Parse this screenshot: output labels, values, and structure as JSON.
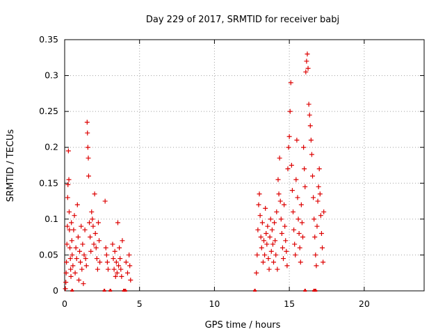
{
  "chart_data": {
    "type": "scatter",
    "title": "Day 229 of 2017, SRMTID for receiver babj",
    "xlabel": "GPS time / hours",
    "ylabel": "SRMTID / TECUs",
    "xlim": [
      0,
      24
    ],
    "ylim": [
      0,
      0.35
    ],
    "xticks": [
      0,
      5,
      10,
      15,
      20
    ],
    "xtick_labels": [
      "0",
      "5",
      "10",
      "15",
      "20"
    ],
    "yticks": [
      0,
      0.05,
      0.1,
      0.15,
      0.2,
      0.25,
      0.3,
      0.35
    ],
    "ytick_labels": [
      "0",
      "0.05",
      "0.1",
      "0.15",
      "0.2",
      "0.25",
      "0.3",
      "0.35"
    ],
    "grid": true,
    "marker": "plus",
    "color": "#dd0000",
    "series": [
      {
        "name": "SRMTID",
        "points": [
          [
            0.05,
            0.003
          ],
          [
            0.08,
            0.012
          ],
          [
            0.1,
            0.025
          ],
          [
            0.12,
            0.04
          ],
          [
            0.15,
            0.065
          ],
          [
            0.18,
            0.09
          ],
          [
            0.2,
            0.13
          ],
          [
            0.22,
            0.148
          ],
          [
            0.25,
            0.195
          ],
          [
            0.28,
            0.155
          ],
          [
            0.3,
            0.11
          ],
          [
            0.32,
            0.085
          ],
          [
            0.35,
            0.06
          ],
          [
            0.38,
            0.045
          ],
          [
            0.4,
            0.03
          ],
          [
            0.42,
            0.02
          ],
          [
            0.45,
            0.095
          ],
          [
            0.48,
            0.07
          ],
          [
            0.5,
            0.05
          ],
          [
            0.55,
            0.035
          ],
          [
            0.6,
            0.085
          ],
          [
            0.65,
            0.105
          ],
          [
            0.7,
            0.025
          ],
          [
            0.75,
            0.06
          ],
          [
            0.8,
            0.045
          ],
          [
            0.85,
            0.12
          ],
          [
            0.9,
            0.075
          ],
          [
            0.95,
            0.015
          ],
          [
            1.0,
            0.055
          ],
          [
            1.05,
            0.04
          ],
          [
            1.1,
            0.09
          ],
          [
            1.15,
            0.03
          ],
          [
            1.2,
            0.065
          ],
          [
            1.25,
            0.01
          ],
          [
            1.3,
            0.05
          ],
          [
            1.35,
            0.085
          ],
          [
            1.4,
            0.045
          ],
          [
            1.45,
            0.035
          ],
          [
            1.5,
            0.235
          ],
          [
            1.52,
            0.22
          ],
          [
            1.55,
            0.2
          ],
          [
            1.58,
            0.185
          ],
          [
            1.6,
            0.16
          ],
          [
            1.65,
            0.095
          ],
          [
            1.7,
            0.075
          ],
          [
            1.75,
            0.055
          ],
          [
            1.8,
            0.11
          ],
          [
            1.85,
            0.1
          ],
          [
            1.9,
            0.09
          ],
          [
            1.95,
            0.065
          ],
          [
            2.0,
            0.135
          ],
          [
            2.05,
            0.08
          ],
          [
            2.1,
            0.06
          ],
          [
            2.15,
            0.045
          ],
          [
            2.2,
            0.03
          ],
          [
            2.25,
            0.095
          ],
          [
            2.3,
            0.07
          ],
          [
            2.35,
            0.04
          ],
          [
            2.7,
            0.125
          ],
          [
            2.75,
            0.06
          ],
          [
            2.8,
            0.05
          ],
          [
            2.85,
            0.04
          ],
          [
            2.9,
            0.03
          ],
          [
            3.2,
            0.065
          ],
          [
            3.25,
            0.045
          ],
          [
            3.3,
            0.03
          ],
          [
            3.35,
            0.055
          ],
          [
            3.4,
            0.02
          ],
          [
            3.45,
            0.04
          ],
          [
            3.5,
            0.025
          ],
          [
            3.55,
            0.095
          ],
          [
            3.6,
            0.035
          ],
          [
            3.65,
            0.06
          ],
          [
            3.7,
            0.045
          ],
          [
            3.75,
            0.03
          ],
          [
            3.8,
            0.02
          ],
          [
            3.85,
            0.07
          ],
          [
            4.1,
            0.04
          ],
          [
            4.2,
            0.025
          ],
          [
            4.3,
            0.05
          ],
          [
            4.35,
            0.035
          ],
          [
            4.4,
            0.015
          ],
          [
            12.8,
            0.025
          ],
          [
            12.85,
            0.05
          ],
          [
            12.9,
            0.085
          ],
          [
            12.95,
            0.12
          ],
          [
            13.0,
            0.135
          ],
          [
            13.05,
            0.105
          ],
          [
            13.1,
            0.075
          ],
          [
            13.15,
            0.06
          ],
          [
            13.2,
            0.095
          ],
          [
            13.25,
            0.04
          ],
          [
            13.3,
            0.07
          ],
          [
            13.35,
            0.05
          ],
          [
            13.4,
            0.115
          ],
          [
            13.45,
            0.08
          ],
          [
            13.5,
            0.065
          ],
          [
            13.55,
            0.09
          ],
          [
            13.6,
            0.045
          ],
          [
            13.65,
            0.03
          ],
          [
            13.7,
            0.075
          ],
          [
            13.75,
            0.1
          ],
          [
            13.8,
            0.055
          ],
          [
            13.85,
            0.085
          ],
          [
            13.9,
            0.065
          ],
          [
            13.95,
            0.04
          ],
          [
            14.0,
            0.095
          ],
          [
            14.05,
            0.07
          ],
          [
            14.1,
            0.05
          ],
          [
            14.15,
            0.11
          ],
          [
            14.2,
            0.03
          ],
          [
            14.25,
            0.155
          ],
          [
            14.3,
            0.135
          ],
          [
            14.35,
            0.185
          ],
          [
            14.4,
            0.125
          ],
          [
            14.45,
            0.1
          ],
          [
            14.5,
            0.08
          ],
          [
            14.55,
            0.06
          ],
          [
            14.6,
            0.045
          ],
          [
            14.65,
            0.12
          ],
          [
            14.7,
            0.09
          ],
          [
            14.75,
            0.07
          ],
          [
            14.8,
            0.055
          ],
          [
            14.85,
            0.035
          ],
          [
            14.9,
            0.17
          ],
          [
            14.95,
            0.2
          ],
          [
            15.0,
            0.215
          ],
          [
            15.05,
            0.25
          ],
          [
            15.1,
            0.29
          ],
          [
            15.15,
            0.175
          ],
          [
            15.2,
            0.14
          ],
          [
            15.25,
            0.11
          ],
          [
            15.3,
            0.085
          ],
          [
            15.35,
            0.065
          ],
          [
            15.4,
            0.05
          ],
          [
            15.45,
            0.155
          ],
          [
            15.5,
            0.21
          ],
          [
            15.55,
            0.13
          ],
          [
            15.6,
            0.1
          ],
          [
            15.65,
            0.08
          ],
          [
            15.7,
            0.06
          ],
          [
            15.75,
            0.04
          ],
          [
            15.8,
            0.12
          ],
          [
            15.85,
            0.095
          ],
          [
            15.9,
            0.075
          ],
          [
            15.95,
            0.2
          ],
          [
            16.0,
            0.17
          ],
          [
            16.05,
            0.145
          ],
          [
            16.1,
            0.305
          ],
          [
            16.15,
            0.32
          ],
          [
            16.2,
            0.33
          ],
          [
            16.25,
            0.31
          ],
          [
            16.3,
            0.26
          ],
          [
            16.35,
            0.245
          ],
          [
            16.4,
            0.23
          ],
          [
            16.45,
            0.21
          ],
          [
            16.5,
            0.19
          ],
          [
            16.55,
            0.16
          ],
          [
            16.6,
            0.13
          ],
          [
            16.65,
            0.1
          ],
          [
            16.7,
            0.075
          ],
          [
            16.75,
            0.05
          ],
          [
            16.8,
            0.035
          ],
          [
            16.85,
            0.09
          ],
          [
            16.9,
            0.125
          ],
          [
            16.95,
            0.145
          ],
          [
            17.0,
            0.17
          ],
          [
            17.05,
            0.135
          ],
          [
            17.1,
            0.105
          ],
          [
            17.15,
            0.08
          ],
          [
            17.2,
            0.06
          ],
          [
            17.25,
            0.04
          ],
          [
            17.3,
            0.11
          ]
        ]
      }
    ],
    "zero_points_x": [
      0.5,
      2.65,
      3.05,
      3.95,
      4.05,
      12.7,
      16.05,
      16.65,
      16.75
    ]
  }
}
